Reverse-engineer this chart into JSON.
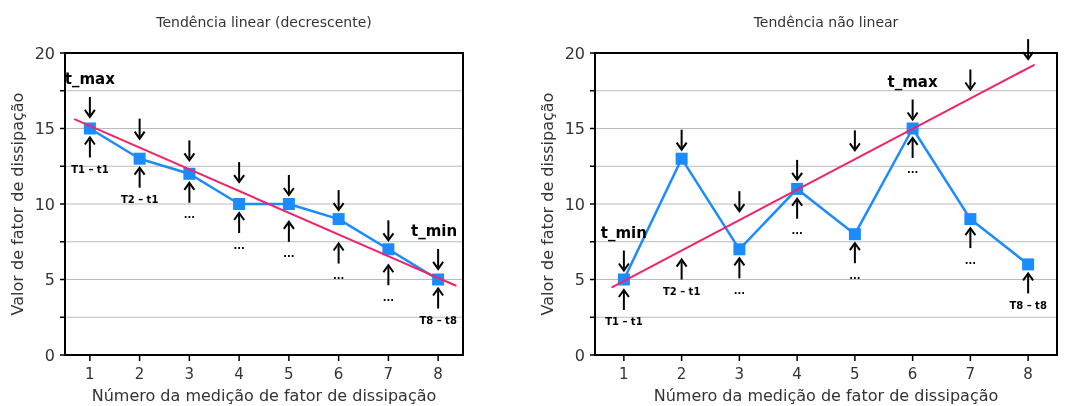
{
  "chart_data": [
    {
      "type": "line",
      "title": "Tendência linear (decrescente)",
      "xlabel": "Número da medição de fator de dissipação",
      "ylabel": "Valor de fator de dissipação",
      "x": [
        1,
        2,
        3,
        4,
        5,
        6,
        7,
        8
      ],
      "xlim": [
        0.5,
        8.5
      ],
      "xticks": [
        1,
        2,
        3,
        4,
        5,
        6,
        7,
        8
      ],
      "ylim": [
        0,
        20
      ],
      "yticks": [
        0,
        {
          "value": 2.5,
          "label": null
        },
        5,
        {
          "value": 7.5,
          "label": null
        },
        10,
        {
          "value": 12.5,
          "label": null
        },
        15,
        {
          "value": 17.5,
          "label": null
        },
        20
      ],
      "grid": "y",
      "marker": "square",
      "line_style": "solid",
      "series": [
        {
          "color": "#1a8cff",
          "values": [
            15,
            13,
            12,
            10,
            10,
            9,
            7,
            5
          ]
        },
        {
          "type": "line",
          "color": "#f0246c",
          "marker": "none",
          "x": [
            0.7,
            8.35
          ],
          "values": [
            15.6,
            4.6
          ]
        }
      ],
      "annotations": [
        "t_max",
        "T1 – t1",
        "T2 – t1",
        "...",
        "...",
        "...",
        "...",
        "...",
        "t_min",
        "T8 – t8"
      ]
    },
    {
      "type": "line",
      "title": "Tendência não linear",
      "xlabel": "Número da medição de fator de dissipação",
      "ylabel": "Valor de fator de dissipação",
      "x": [
        1,
        2,
        3,
        4,
        5,
        6,
        7,
        8
      ],
      "xlim": [
        0.5,
        8.5
      ],
      "xticks": [
        1,
        2,
        3,
        4,
        5,
        6,
        7,
        8
      ],
      "ylim": [
        0,
        20
      ],
      "yticks": [
        0,
        {
          "value": 2.5,
          "label": null
        },
        5,
        {
          "value": 7.5,
          "label": null
        },
        10,
        {
          "value": 12.5,
          "label": null
        },
        15,
        {
          "value": 17.5,
          "label": null
        },
        20
      ],
      "grid": "y",
      "marker": "square",
      "line_style": "solid",
      "series": [
        {
          "color": "#1a8cff",
          "values": [
            5,
            13,
            7,
            11,
            8,
            15,
            9,
            6
          ]
        },
        {
          "type": "line",
          "color": "#f0246c",
          "marker": "none",
          "x": [
            0.8,
            8.1
          ],
          "values": [
            4.5,
            19.2
          ]
        }
      ],
      "annotations": [
        "t_min",
        "T1 – t1",
        "T2 – t1",
        "...",
        "...",
        "...",
        "t_max",
        "...",
        "...",
        "T8 – t8"
      ]
    }
  ]
}
